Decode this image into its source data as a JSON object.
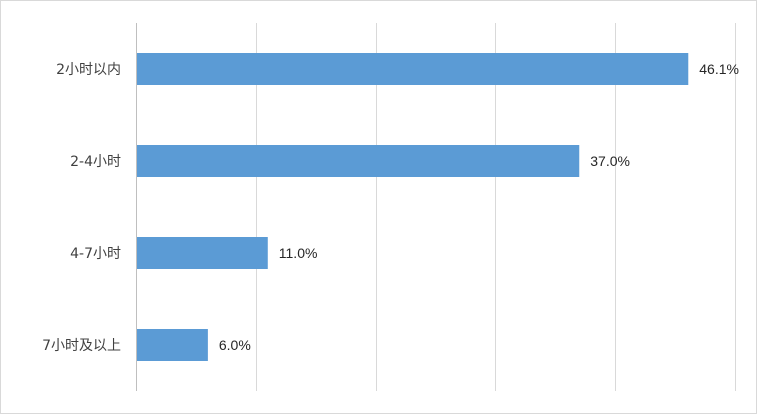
{
  "chart_data": {
    "type": "bar",
    "orientation": "horizontal",
    "categories": [
      "2小时以内",
      "2-4小时",
      "4-7小时",
      "7小时及以上"
    ],
    "values": [
      46.1,
      37.0,
      11.0,
      6.0
    ],
    "data_labels": [
      "46.1%",
      "37.0%",
      "11.0%",
      "6.0%"
    ],
    "unit": "%",
    "xlim": [
      0,
      50
    ],
    "x_gridlines": [
      0,
      10,
      20,
      30,
      40,
      50
    ],
    "grid": true,
    "x_tick_labels_shown": false,
    "legend": "none",
    "title": "",
    "xlabel": "",
    "ylabel": "",
    "colors": {
      "bar": "#5b9bd5",
      "grid": "#d9d9d9",
      "axis": "#bfbfbf",
      "category_text": "#404040",
      "label_text": "#262626",
      "border": "#d9d9d9"
    }
  }
}
